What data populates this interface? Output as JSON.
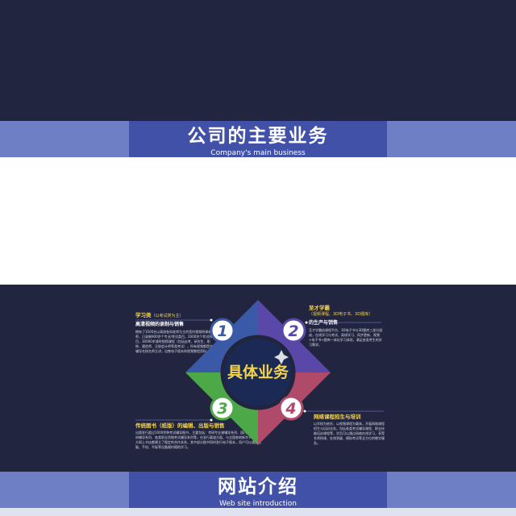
{
  "colors": {
    "dark_bg": "#22253f",
    "banner_strip": "#6f7fc6",
    "banner_tab": "#4251a8",
    "quad_blue": "#3a5aa8",
    "quad_purple": "#5a48a8",
    "quad_green": "#4da848",
    "quad_red": "#b04a6a",
    "accent_yellow": "#f5d34a"
  },
  "top_banner": {
    "title": "公司的主要业务",
    "subtitle": "Company's main business"
  },
  "bottom_banner": {
    "title": "网站介绍",
    "subtitle": "Web site introduction"
  },
  "diagram": {
    "center_label": "具体业务",
    "numbers": [
      "1",
      "2",
      "3",
      "4"
    ]
  },
  "blocks": {
    "b1": {
      "title": "学习类",
      "title_note": "（以考试类为主）",
      "subtitle": "高清视频的录制与销售",
      "body": "拥有了3500名以高校各科老师为主的签约视频授课老师，已录制900余个专业/考试类目，2000余个考试科目，30000余课时视频课程（包括自考、研究生、职称、建造师、注册会计师等类考试），所有视频都是本辅导名校名师主讲，出售电子版本的视频教程资料。"
    },
    "b2": {
      "title": "至才学霸",
      "title_note": "（视频课程、3D电子书、3D题库）",
      "subtitle": "的生产与销售",
      "body": "至才学霸由课程平台、3D电子书与3D题库三部分组成，在线学习与考试、离线学习、同步更新、视频+电子书+题库一体化学习体验，满足各类考生的学习需求。"
    },
    "b3": {
      "title": "传统图书（纸版）的编辑、出版与销售",
      "subtitle": "",
      "body": "出版发行超过1000余种考试辅导图书，主要包括：考研专业课辅导系列、国内外经典教材辅导系列、各类职业资格考试辅导系列等。在发行渠道方面，与全国各地新华书店、各大网上书店都建立了稳定的合作关系，其中部分图书同时发行电子版本，用户可以通过电脑、手机、平板等设备随时随地学习。"
    },
    "b4": {
      "title": "网络课程招生与培训",
      "subtitle": "",
      "body": "以学校为依托、以视频课程为载体，开展网络课程招生与培训业务，包括各类考试辅导课程、职业技能培训课程等，学员可以通过网络在线学习，享受名师授课、在线答疑、模拟考试等全方位的教学服务。"
    }
  }
}
